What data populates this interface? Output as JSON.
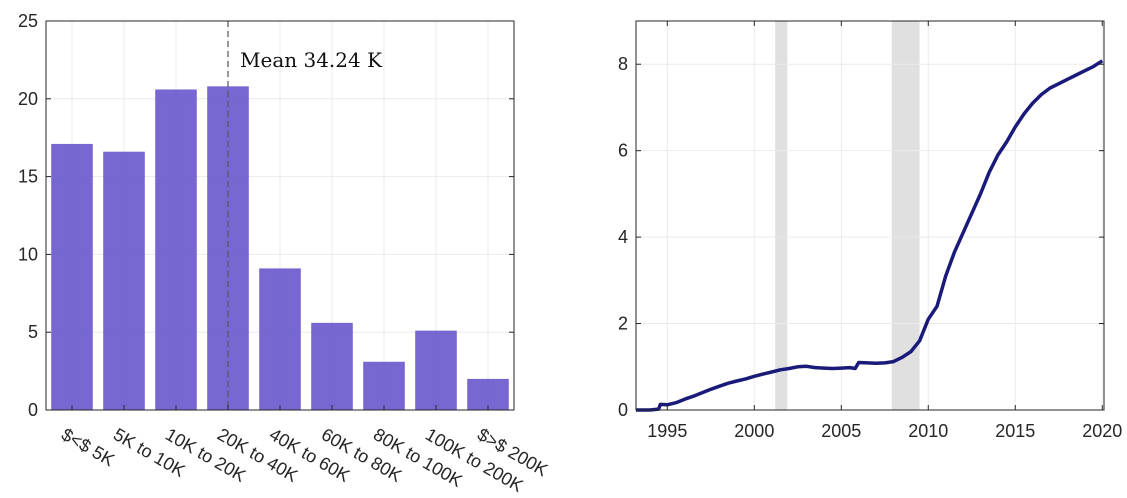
{
  "chart_data": [
    {
      "type": "bar",
      "title": "",
      "xlabel": "",
      "ylabel": "",
      "categories": [
        "$<$ 5K",
        "5K to 10K",
        "10K to 20K",
        "20K to 40K",
        "40K to 60K",
        "60K to 80K",
        "80K to 100K",
        "100K to 200K",
        "$>$ 200K"
      ],
      "values": [
        17.1,
        16.6,
        20.6,
        20.8,
        9.1,
        5.6,
        3.1,
        5.1,
        2.0
      ],
      "ylim": [
        0,
        25
      ],
      "yticks": [
        0,
        5,
        10,
        15,
        20,
        25
      ],
      "grid": true,
      "bar_color": "#6a5acd",
      "annotation": {
        "text": "Mean 34.24 K",
        "position_category_index": 3.5
      }
    },
    {
      "type": "line",
      "title": "",
      "xlabel": "",
      "ylabel": "",
      "xlim": [
        1993.2,
        2020.1
      ],
      "ylim": [
        0,
        9
      ],
      "xticks": [
        1995,
        2000,
        2005,
        2010,
        2015,
        2020
      ],
      "yticks": [
        0,
        2,
        4,
        6,
        8
      ],
      "grid": true,
      "line_color": "#1a1a7a",
      "shaded_periods_color": "#e0e0e0",
      "shaded_periods": [
        [
          2001.2,
          2001.9
        ],
        [
          2007.9,
          2009.5
        ]
      ],
      "series": [
        {
          "x": [
            1993.2,
            1994.0,
            1994.5,
            1994.6,
            1995.0,
            1995.5,
            1996.0,
            1996.5,
            1997.0,
            1997.5,
            1998.0,
            1998.5,
            1999.0,
            1999.5,
            2000.0,
            2000.5,
            2001.0,
            2001.5,
            2002.0,
            2002.5,
            2003.0,
            2003.5,
            2004.0,
            2004.5,
            2005.0,
            2005.5,
            2005.8,
            2006.0,
            2006.5,
            2007.0,
            2007.5,
            2008.0,
            2008.5,
            2009.0,
            2009.5,
            2010.0,
            2010.5,
            2011.0,
            2011.5,
            2012.0,
            2012.5,
            2013.0,
            2013.5,
            2014.0,
            2014.5,
            2015.0,
            2015.5,
            2016.0,
            2016.5,
            2017.0,
            2017.5,
            2018.0,
            2018.5,
            2019.0,
            2019.5,
            2020.0
          ],
          "y": [
            0.0,
            0.0,
            0.02,
            0.13,
            0.12,
            0.17,
            0.25,
            0.32,
            0.4,
            0.48,
            0.55,
            0.62,
            0.67,
            0.72,
            0.78,
            0.83,
            0.88,
            0.93,
            0.96,
            1.0,
            1.01,
            0.98,
            0.97,
            0.96,
            0.97,
            0.98,
            0.96,
            1.1,
            1.09,
            1.08,
            1.09,
            1.12,
            1.22,
            1.35,
            1.6,
            2.1,
            2.4,
            3.1,
            3.65,
            4.1,
            4.55,
            5.0,
            5.5,
            5.9,
            6.2,
            6.55,
            6.85,
            7.1,
            7.3,
            7.45,
            7.55,
            7.65,
            7.75,
            7.85,
            7.95,
            8.08
          ]
        }
      ]
    }
  ]
}
